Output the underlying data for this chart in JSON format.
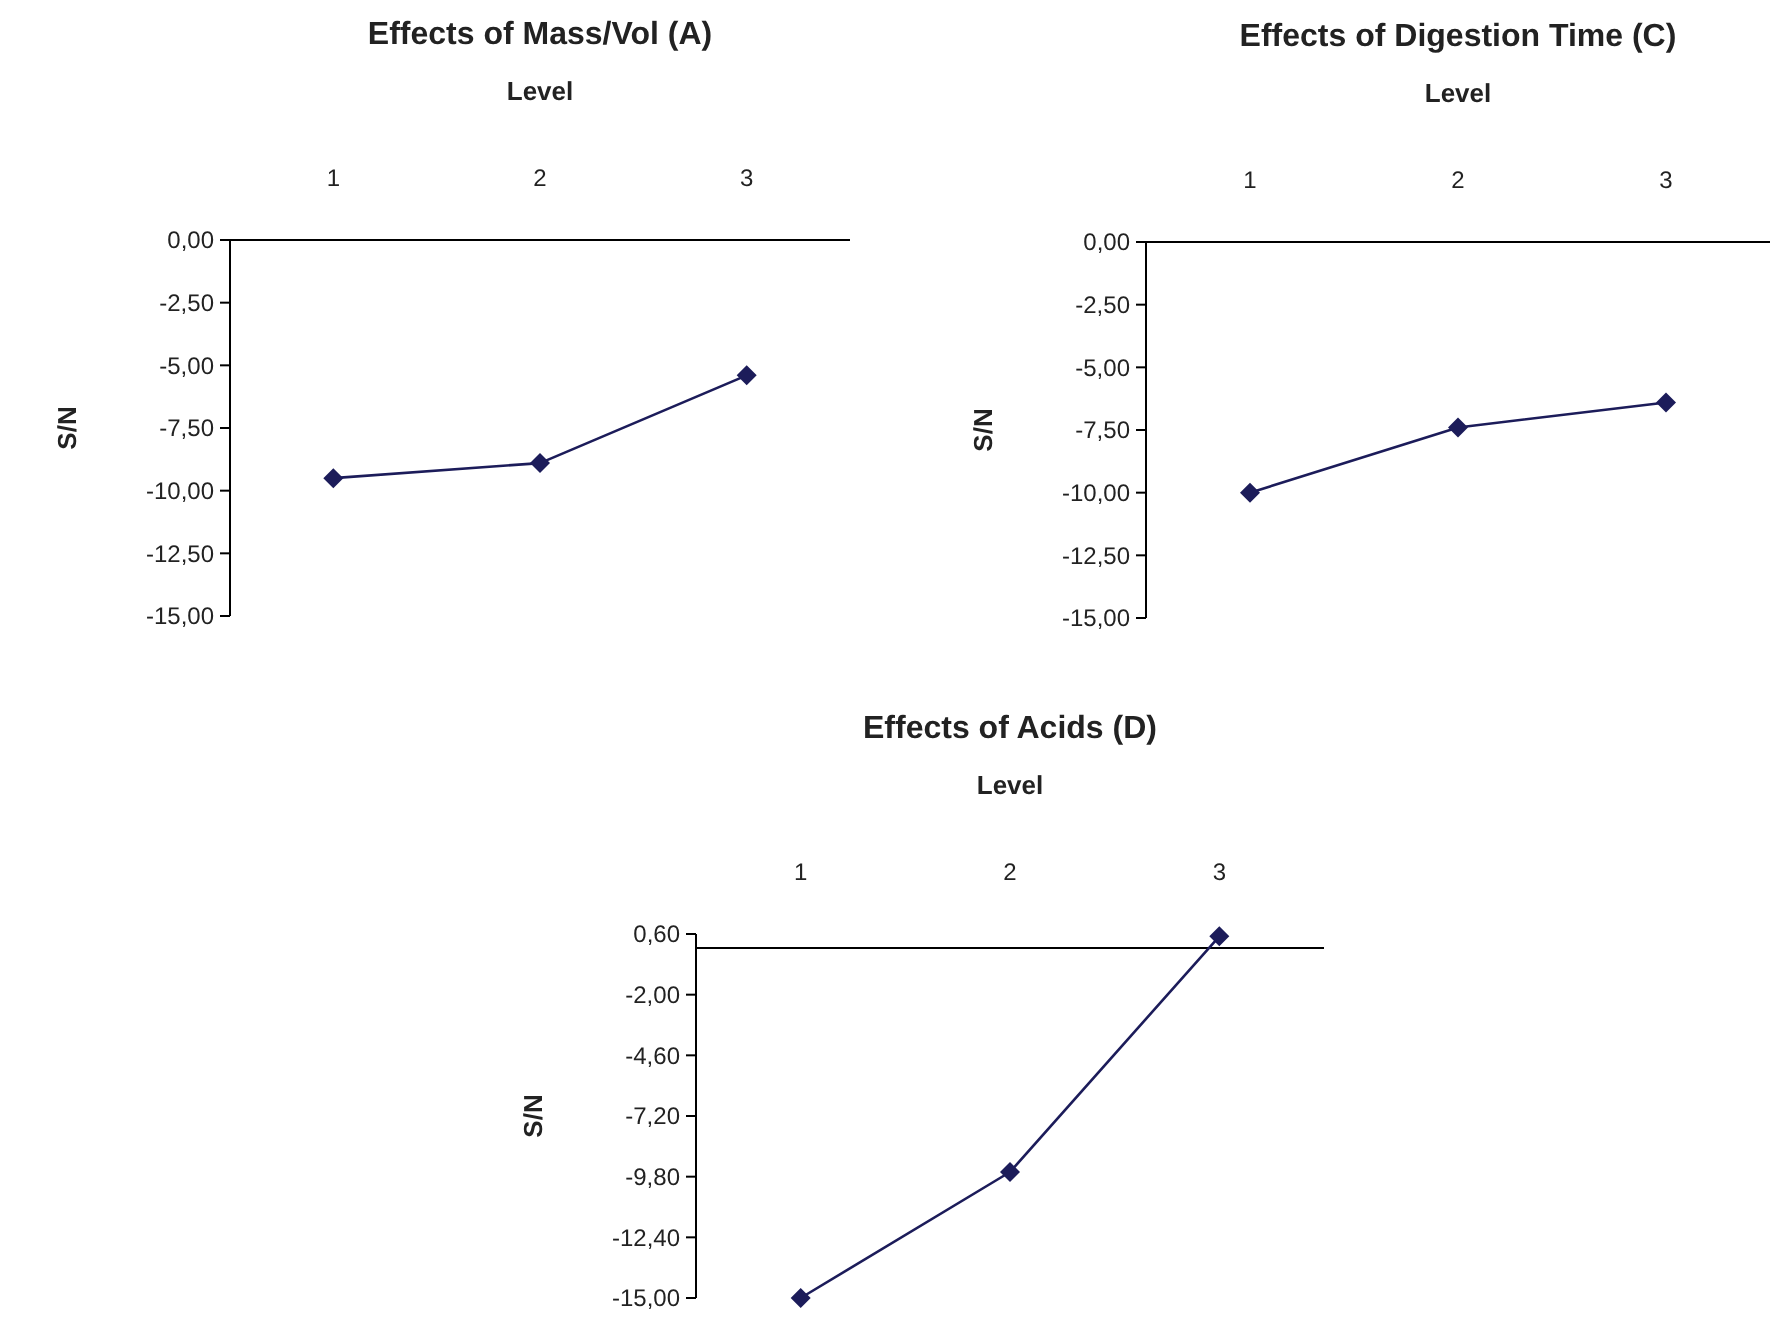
{
  "chart_data": [
    {
      "type": "line",
      "title": "Effects of Mass/Vol  (A)",
      "xlabel": "Level",
      "ylabel": "S/N",
      "categories": [
        "1",
        "2",
        "3"
      ],
      "marker": "diamond",
      "series": [
        {
          "color": "#1c1c5a",
          "values": [
            -9.5,
            -8.9,
            -5.4
          ]
        }
      ],
      "ylim": [
        -15,
        0
      ],
      "yticks": [
        {
          "value": 0,
          "label": "0,00"
        },
        {
          "value": -2.5,
          "label": "-2,50"
        },
        {
          "value": -5,
          "label": "-5,00"
        },
        {
          "value": -7.5,
          "label": "-7,50"
        },
        {
          "value": -10,
          "label": "-10,00"
        },
        {
          "value": -12.5,
          "label": "-12,50"
        },
        {
          "value": -15,
          "label": "-15,00"
        }
      ]
    },
    {
      "type": "line",
      "title": "Effects of Digestion Time   (C)",
      "xlabel": "Level",
      "ylabel": "S/N",
      "categories": [
        "1",
        "2",
        "3"
      ],
      "marker": "diamond",
      "series": [
        {
          "color": "#1c1c5a",
          "values": [
            -10.0,
            -7.4,
            -6.4
          ]
        }
      ],
      "ylim": [
        -15,
        0
      ],
      "yticks": [
        {
          "value": 0,
          "label": "0,00"
        },
        {
          "value": -2.5,
          "label": "-2,50"
        },
        {
          "value": -5,
          "label": "-5,00"
        },
        {
          "value": -7.5,
          "label": "-7,50"
        },
        {
          "value": -10,
          "label": "-10,00"
        },
        {
          "value": -12.5,
          "label": "-12,50"
        },
        {
          "value": -15,
          "label": "-15,00"
        }
      ]
    },
    {
      "type": "line",
      "title": "Effects of Acids  (D)",
      "xlabel": "Level",
      "ylabel": "S/N",
      "categories": [
        "1",
        "2",
        "3"
      ],
      "marker": "diamond",
      "series": [
        {
          "color": "#1c1c5a",
          "values": [
            -15.0,
            -9.6,
            0.5
          ]
        }
      ],
      "ylim": [
        -15,
        0.6
      ],
      "yticks": [
        {
          "value": 0.6,
          "label": "0,60"
        },
        {
          "value": -2,
          "label": "-2,00"
        },
        {
          "value": -4.6,
          "label": "-4,60"
        },
        {
          "value": -7.2,
          "label": "-7,20"
        },
        {
          "value": -9.8,
          "label": "-9,80"
        },
        {
          "value": -12.4,
          "label": "-12,40"
        },
        {
          "value": -15,
          "label": "-15,00"
        }
      ]
    }
  ]
}
